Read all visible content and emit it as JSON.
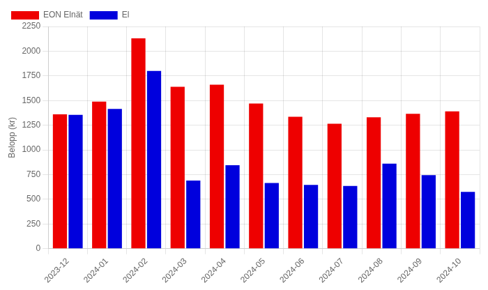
{
  "chart_data": {
    "type": "bar",
    "y_label": "Belopp (kr)",
    "categories": [
      "2023-12",
      "2024-01",
      "2024-02",
      "2024-03",
      "2024-04",
      "2024-05",
      "2024-06",
      "2024-07",
      "2024-08",
      "2024-09",
      "2024-10"
    ],
    "series": [
      {
        "name": "EON Elnät",
        "color": "#ee0000",
        "values": [
          1360,
          1490,
          2130,
          1640,
          1660,
          1470,
          1335,
          1265,
          1330,
          1365,
          1390
        ]
      },
      {
        "name": "El",
        "color": "#0000dd",
        "values": [
          1355,
          1415,
          1800,
          690,
          845,
          665,
          645,
          635,
          860,
          745,
          575
        ]
      }
    ],
    "ylim": [
      0,
      2250
    ],
    "yticks": [
      0,
      250,
      500,
      750,
      1000,
      1250,
      1500,
      1750,
      2000,
      2250
    ],
    "grid": true,
    "legend": "upper left"
  }
}
